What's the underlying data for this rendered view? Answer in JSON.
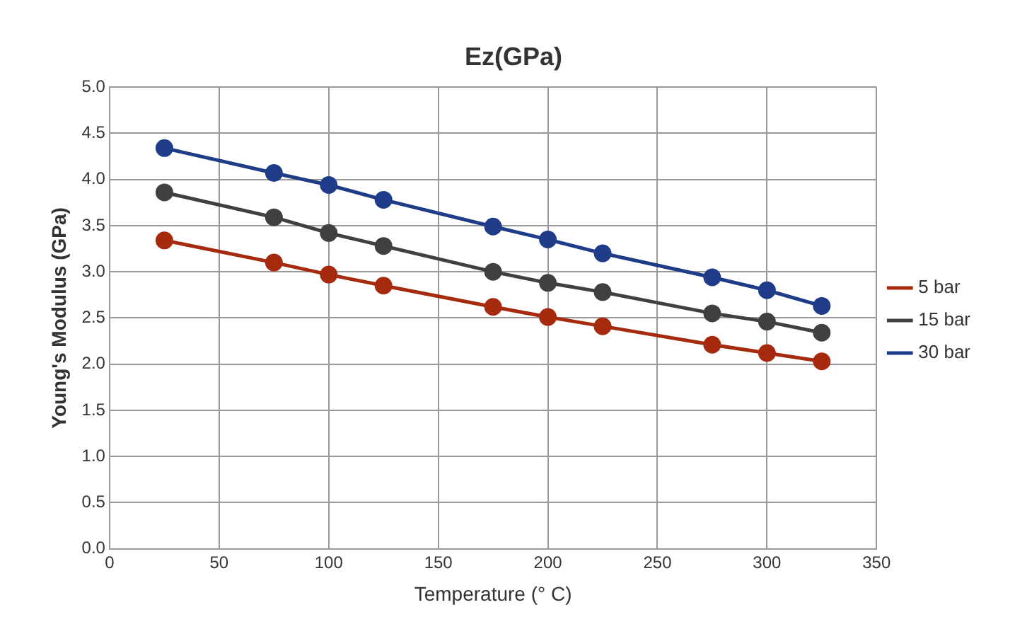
{
  "chart_data": {
    "type": "line",
    "title": "Ez(GPa)",
    "xlabel": "Temperature (° C)",
    "ylabel": "Young's Modulus (GPa)",
    "x": [
      25,
      75,
      100,
      125,
      175,
      200,
      225,
      275,
      300,
      325
    ],
    "series": [
      {
        "name": "5 bar",
        "color": "#a52a0e",
        "values": [
          3.34,
          3.1,
          2.97,
          2.85,
          2.62,
          2.51,
          2.41,
          2.21,
          2.12,
          2.03
        ]
      },
      {
        "name": "15 bar",
        "color": "#404040",
        "values": [
          3.86,
          3.59,
          3.42,
          3.28,
          3.0,
          2.88,
          2.78,
          2.55,
          2.46,
          2.34
        ]
      },
      {
        "name": "30 bar",
        "color": "#1f3c88",
        "values": [
          4.34,
          4.07,
          3.94,
          3.78,
          3.49,
          3.35,
          3.2,
          2.94,
          2.8,
          2.63
        ]
      }
    ],
    "xlim": [
      0,
      350
    ],
    "xticks": [
      0,
      50,
      100,
      150,
      200,
      250,
      300,
      350
    ],
    "ylim": [
      0,
      5
    ],
    "yticks": [
      {
        "value": 0,
        "label": "0.0"
      },
      {
        "value": 0.5,
        "label": "0.5"
      },
      {
        "value": 1,
        "label": "1.0"
      },
      {
        "value": 1.5,
        "label": "1.5"
      },
      {
        "value": 2,
        "label": "2.0"
      },
      {
        "value": 2.5,
        "label": "2.5"
      },
      {
        "value": 3,
        "label": "3.0"
      },
      {
        "value": 3.5,
        "label": "3.5"
      },
      {
        "value": 4,
        "label": "4.0"
      },
      {
        "value": 4.5,
        "label": "4.5"
      },
      {
        "value": 5,
        "label": "5.0"
      }
    ],
    "grid": true,
    "legend": "right",
    "marker": "circle",
    "line_style": "solid"
  }
}
